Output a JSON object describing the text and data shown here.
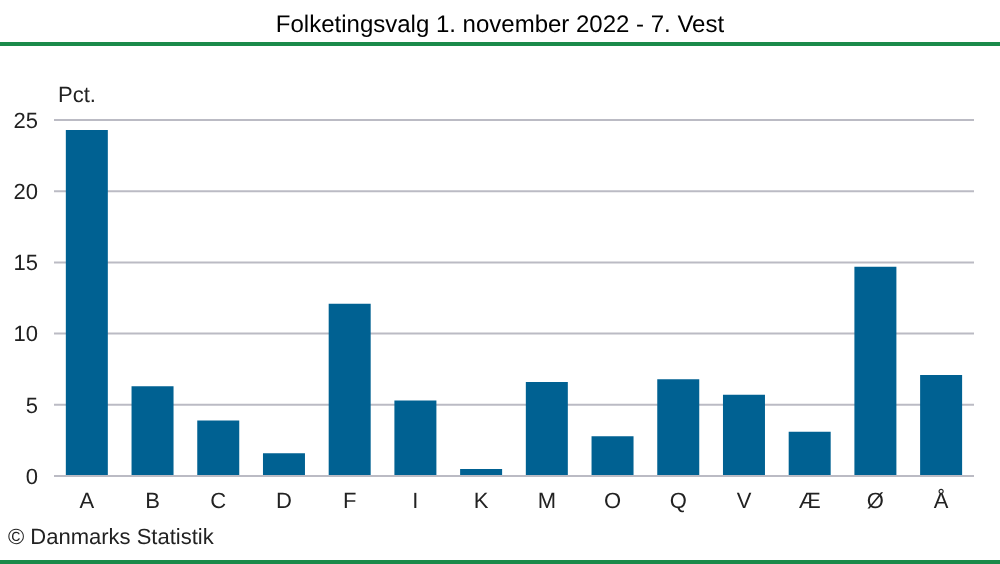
{
  "chart_data": {
    "type": "bar",
    "title": "Folketingsvalg 1. november 2022 - 7. Vest",
    "ylabel": "Pct.",
    "categories": [
      "A",
      "B",
      "C",
      "D",
      "F",
      "I",
      "K",
      "M",
      "O",
      "Q",
      "V",
      "Æ",
      "Ø",
      "Å"
    ],
    "values": [
      24.3,
      6.3,
      3.9,
      1.6,
      12.1,
      5.3,
      0.5,
      6.6,
      2.8,
      6.8,
      5.7,
      3.1,
      14.7,
      7.1
    ],
    "color": "#006192",
    "ylim": [
      0,
      25
    ],
    "yticks": [
      0,
      5,
      10,
      15,
      20,
      25
    ],
    "grid": "y",
    "annotations": [
      "© Danmarks Statistik"
    ]
  }
}
